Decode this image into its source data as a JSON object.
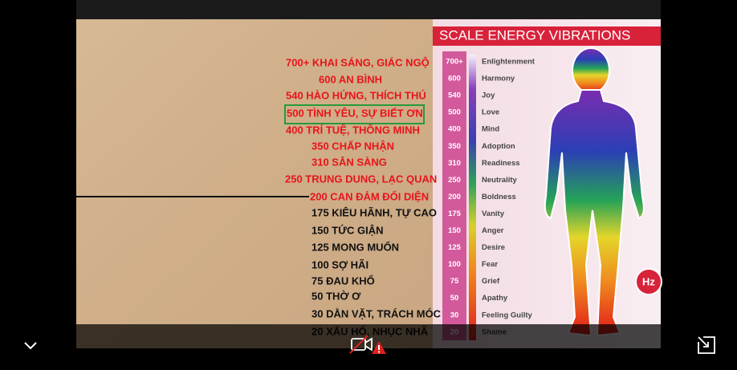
{
  "video": {
    "left_list": [
      {
        "text": "700+ KHAI SÁNG, GIÁC NGỘ",
        "color": "#e8141b"
      },
      {
        "text": "600 AN BÌNH",
        "color": "#e8141b"
      },
      {
        "text": "540 HÀO HỨNG, THÍCH THÚ",
        "color": "#e8141b"
      },
      {
        "text": "500 TÌNH YÊU, SỰ BIẾT ƠN",
        "color": "#e8141b"
      },
      {
        "text": "400 TRÍ TUỆ, THÔNG MINH",
        "color": "#e8141b"
      },
      {
        "text": "350 CHẤP NHẬN",
        "color": "#e8141b"
      },
      {
        "text": "310 SẴN SÀNG",
        "color": "#e8141b"
      },
      {
        "text": "250 TRUNG DUNG, LẠC QUAN",
        "color": "#e8141b"
      },
      {
        "text": "200 CAN ĐẢM ĐỐI DIỆN",
        "color": "#e8141b"
      },
      {
        "text": "175 KIÊU HÃNH, TỰ CAO",
        "color": "#111111"
      },
      {
        "text": "150 TỨC GIẬN",
        "color": "#111111"
      },
      {
        "text": "125 MONG MUỐN",
        "color": "#111111"
      },
      {
        "text": "100 SỢ HÃI",
        "color": "#111111"
      },
      {
        "text": "75 ĐAU KHỔ",
        "color": "#111111"
      },
      {
        "text": "50 THỜ Ơ",
        "color": "#111111"
      },
      {
        "text": "30 DẰN VẶT, TRÁCH MÓC",
        "color": "#111111"
      },
      {
        "text": "20 XẤU HỔ, NHỤC NHÃ",
        "color": "#111111"
      }
    ],
    "scale_title": "SCALE ENERGY VIBRATIONS",
    "scale_rows": [
      {
        "level": "700+",
        "name": "Enlightenment"
      },
      {
        "level": "600",
        "name": "Harmony"
      },
      {
        "level": "540",
        "name": "Joy"
      },
      {
        "level": "500",
        "name": "Love"
      },
      {
        "level": "400",
        "name": "Mind"
      },
      {
        "level": "350",
        "name": "Adoption"
      },
      {
        "level": "310",
        "name": "Readiness"
      },
      {
        "level": "250",
        "name": "Neutrality"
      },
      {
        "level": "200",
        "name": "Boldness"
      },
      {
        "level": "175",
        "name": "Vanity"
      },
      {
        "level": "150",
        "name": "Anger"
      },
      {
        "level": "125",
        "name": "Desire"
      },
      {
        "level": "100",
        "name": "Fear"
      },
      {
        "level": "75",
        "name": "Grief"
      },
      {
        "level": "50",
        "name": "Apathy"
      },
      {
        "level": "30",
        "name": "Feeling Guilty"
      },
      {
        "level": "20",
        "name": "Shame"
      }
    ],
    "badge": "Hz"
  }
}
